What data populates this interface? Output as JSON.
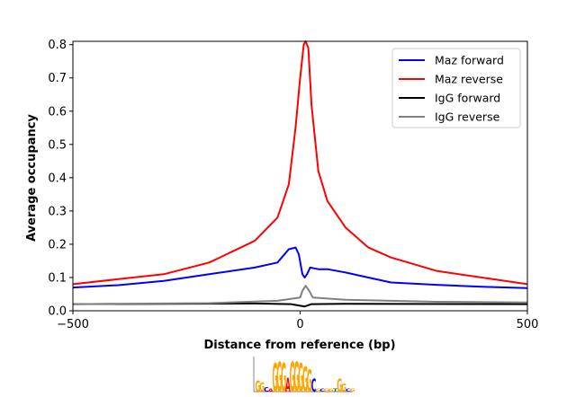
{
  "chart_data": {
    "type": "line",
    "title": "",
    "xlabel": "Distance from reference (bp)",
    "ylabel": "Average occupancy",
    "xlim": [
      -500,
      500
    ],
    "ylim": [
      0,
      0.81
    ],
    "xticks": [
      -500,
      0,
      500
    ],
    "xtick_labels": [
      "−500",
      "0",
      "500"
    ],
    "yticks": [
      0.0,
      0.1,
      0.2,
      0.3,
      0.4,
      0.5,
      0.6,
      0.7,
      0.8
    ],
    "ytick_labels": [
      "0.0",
      "0.1",
      "0.2",
      "0.3",
      "0.4",
      "0.5",
      "0.6",
      "0.7",
      "0.8"
    ],
    "grid": false,
    "legend_placement": "top-right",
    "series": [
      {
        "name": "Maz forward",
        "color": "#0000ff",
        "x": [
          -500,
          -400,
          -300,
          -200,
          -100,
          -50,
          -25,
          -10,
          -3,
          5,
          10,
          15,
          22,
          40,
          60,
          100,
          150,
          200,
          300,
          400,
          500
        ],
        "y": [
          0.07,
          0.077,
          0.09,
          0.11,
          0.13,
          0.145,
          0.185,
          0.19,
          0.17,
          0.11,
          0.1,
          0.11,
          0.13,
          0.125,
          0.125,
          0.115,
          0.1,
          0.085,
          0.078,
          0.072,
          0.068
        ]
      },
      {
        "name": "Maz reverse",
        "color": "#ff0000",
        "x": [
          -500,
          -400,
          -300,
          -200,
          -100,
          -50,
          -25,
          -10,
          0,
          8,
          12,
          18,
          25,
          40,
          60,
          100,
          150,
          200,
          300,
          400,
          500
        ],
        "y": [
          0.08,
          0.095,
          0.11,
          0.145,
          0.21,
          0.28,
          0.38,
          0.55,
          0.7,
          0.8,
          0.81,
          0.79,
          0.62,
          0.42,
          0.33,
          0.25,
          0.19,
          0.16,
          0.12,
          0.1,
          0.08
        ]
      },
      {
        "name": "IgG forward",
        "color": "#000000",
        "x": [
          -500,
          -100,
          -20,
          0,
          10,
          25,
          100,
          500
        ],
        "y": [
          0.02,
          0.022,
          0.02,
          0.015,
          0.013,
          0.02,
          0.021,
          0.02
        ]
      },
      {
        "name": "IgG reverse",
        "color": "#808080",
        "x": [
          -500,
          -200,
          -50,
          0,
          5,
          12,
          20,
          28,
          100,
          300,
          500
        ],
        "y": [
          0.02,
          0.023,
          0.03,
          0.04,
          0.06,
          0.075,
          0.06,
          0.04,
          0.033,
          0.027,
          0.025
        ]
      }
    ]
  },
  "motif_logo": {
    "sequence": "GGCAGGGAGGGGGCGCGGTGGCG",
    "colors": {
      "G": "#ffa500",
      "A": "#ff0000",
      "C": "#0000ff",
      "T": "#008000"
    }
  }
}
